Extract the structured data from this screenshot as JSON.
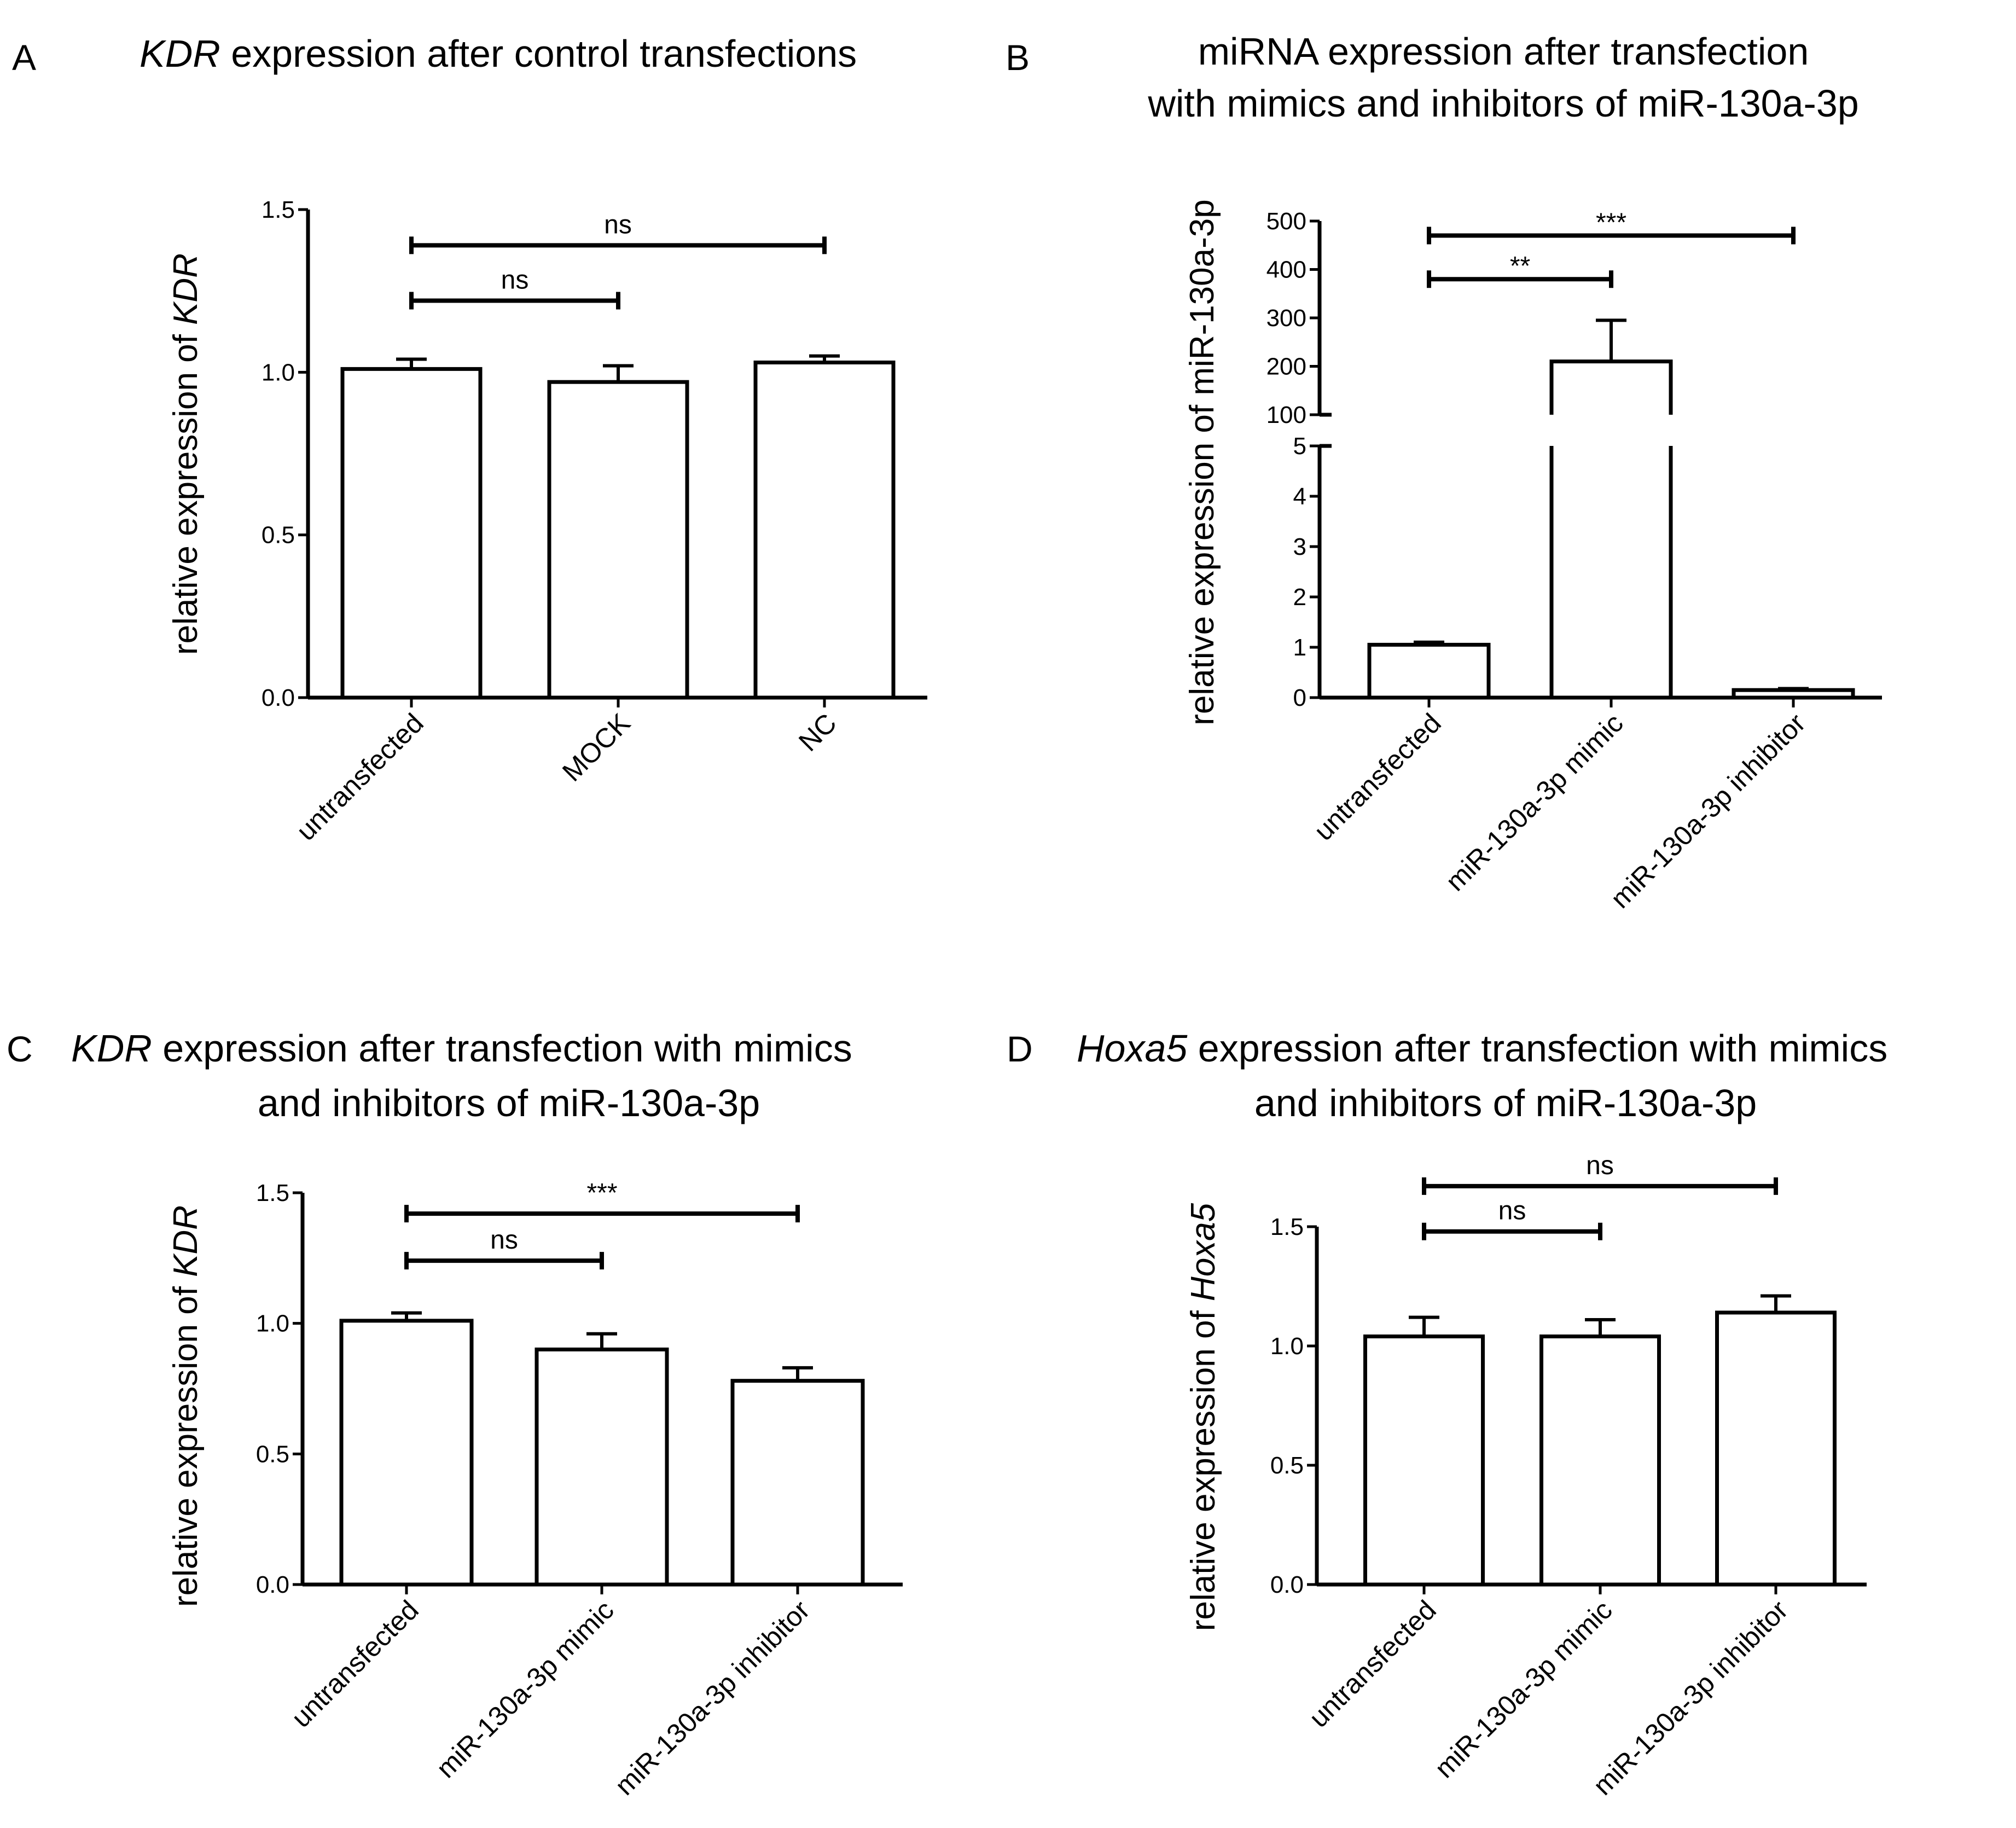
{
  "chart_data": [
    {
      "panel": "A",
      "type": "bar",
      "title_italic": "KDR",
      "title_rest": " expression after control transfections",
      "ylabel_prefix": "relative expression of ",
      "ylabel_italic": "KDR",
      "categories": [
        "untransfected",
        "MOCK",
        "NC"
      ],
      "values": [
        1.01,
        0.97,
        1.03
      ],
      "errors": [
        0.03,
        0.05,
        0.02
      ],
      "ylim": [
        0,
        1.5
      ],
      "yticks": [
        "0.0",
        "0.5",
        "1.0",
        "1.5"
      ],
      "significance": [
        {
          "from": 0,
          "to": 1,
          "label": "ns",
          "level": 1.22
        },
        {
          "from": 0,
          "to": 2,
          "label": "ns",
          "level": 1.39
        }
      ]
    },
    {
      "panel": "B",
      "type": "bar",
      "title_line1": "miRNA expression after transfection",
      "title_line2": "with mimics and inhibitors of miR-130a-3p",
      "ylabel": "relative expression of miR-130a-3p",
      "categories": [
        "untransfected",
        "miR-130a-3p mimic",
        "miR-130a-3p inhibitor"
      ],
      "values": [
        1.05,
        210,
        0.15
      ],
      "errors": [
        0.05,
        85,
        0.03
      ],
      "broken_axis": true,
      "lower_range": [
        0,
        5
      ],
      "upper_range": [
        100,
        500
      ],
      "lower_ticks": [
        "0",
        "1",
        "2",
        "3",
        "4",
        "5"
      ],
      "upper_ticks": [
        "100",
        "200",
        "300",
        "400",
        "500"
      ],
      "significance": [
        {
          "from": 0,
          "to": 1,
          "label": "**",
          "level": 380
        },
        {
          "from": 0,
          "to": 2,
          "label": "***",
          "level": 470
        }
      ]
    },
    {
      "panel": "C",
      "type": "bar",
      "title_italic": "KDR",
      "title_rest": " expression after transfection with mimics",
      "title_line2": "and inhibitors of miR-130a-3p",
      "ylabel_prefix": "relative expression of ",
      "ylabel_italic": "KDR",
      "categories": [
        "untransfected",
        "miR-130a-3p mimic",
        "miR-130a-3p inhibitor"
      ],
      "values": [
        1.01,
        0.9,
        0.78
      ],
      "errors": [
        0.03,
        0.06,
        0.05
      ],
      "ylim": [
        0,
        1.5
      ],
      "yticks": [
        "0.0",
        "0.5",
        "1.0",
        "1.5"
      ],
      "significance": [
        {
          "from": 0,
          "to": 1,
          "label": "ns",
          "level": 1.24
        },
        {
          "from": 0,
          "to": 2,
          "label": "***",
          "level": 1.42
        }
      ]
    },
    {
      "panel": "D",
      "type": "bar",
      "title_italic": "Hoxa5",
      "title_rest": " expression after transfection with mimics",
      "title_line2": "and inhibitors of miR-130a-3p",
      "ylabel_prefix": "relative expression of ",
      "ylabel_italic": "Hoxa5",
      "categories": [
        "untransfected",
        "miR-130a-3p mimic",
        "miR-130a-3p inhibitor"
      ],
      "values": [
        1.04,
        1.04,
        1.14
      ],
      "errors": [
        0.08,
        0.07,
        0.07
      ],
      "ylim": [
        0,
        1.5
      ],
      "yticks": [
        "0.0",
        "0.5",
        "1.0",
        "1.5"
      ],
      "significance": [
        {
          "from": 0,
          "to": 1,
          "label": "ns",
          "level": 1.48
        },
        {
          "from": 0,
          "to": 2,
          "label": "ns",
          "level": 1.67
        }
      ]
    }
  ]
}
